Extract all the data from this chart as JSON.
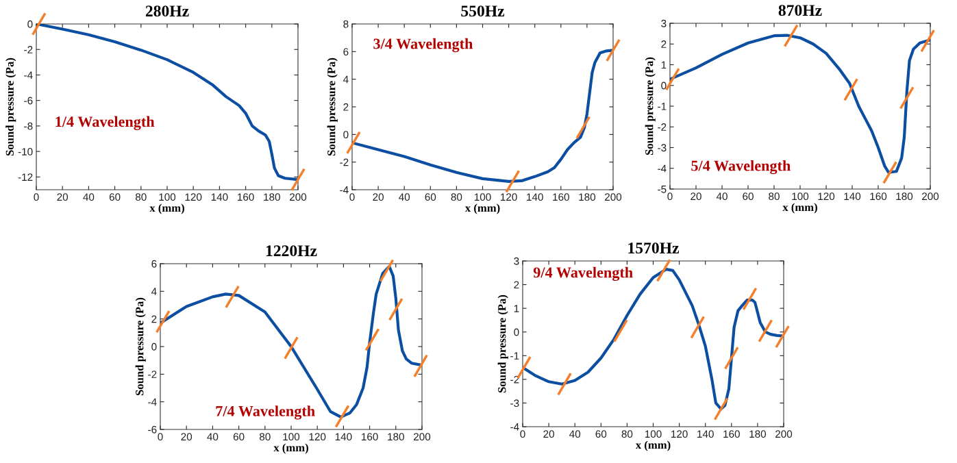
{
  "chart_data": [
    {
      "type": "line",
      "title": "280Hz",
      "xlabel": "x (mm)",
      "ylabel": "Sound pressure (Pa)",
      "annotations": [
        "1/4 Wavelength"
      ],
      "xlim": [
        0,
        200
      ],
      "xticks": [
        0,
        20,
        40,
        60,
        80,
        100,
        120,
        140,
        160,
        180,
        200
      ],
      "ylim": [
        -13,
        0
      ],
      "yticks": [
        -12,
        -10,
        -8,
        -6,
        -4,
        -2,
        0
      ],
      "grid": false,
      "series": [
        {
          "type": "line",
          "color": "#0b4ea2",
          "x": [
            0,
            20,
            40,
            60,
            80,
            100,
            120,
            135,
            145,
            155,
            160,
            165,
            170,
            175,
            178,
            180,
            182,
            185,
            190,
            200
          ],
          "values": [
            0,
            -0.4,
            -0.85,
            -1.4,
            -2.05,
            -2.8,
            -3.8,
            -4.8,
            -5.7,
            -6.4,
            -7,
            -8,
            -8.4,
            -8.7,
            -9.2,
            -10.2,
            -11.3,
            -11.9,
            -12.1,
            -12.2
          ]
        },
        {
          "type": "scatter",
          "color": "#f47f2a",
          "x": [
            2,
            200
          ],
          "values": [
            0,
            -12.2
          ]
        }
      ]
    },
    {
      "type": "line",
      "title": "550Hz",
      "xlabel": "x (mm)",
      "ylabel": "Sound pressure (Pa)",
      "annotations": [
        "3/4 Wavelength"
      ],
      "xlim": [
        0,
        200
      ],
      "xticks": [
        0,
        20,
        40,
        60,
        80,
        100,
        120,
        140,
        160,
        180,
        200
      ],
      "ylim": [
        -4,
        8
      ],
      "yticks": [
        -4,
        -2,
        0,
        2,
        4,
        6,
        8
      ],
      "grid": false,
      "series": [
        {
          "type": "line",
          "color": "#0b4ea2",
          "x": [
            0,
            20,
            40,
            60,
            80,
            100,
            120,
            130,
            140,
            150,
            155,
            160,
            165,
            170,
            175,
            178,
            180,
            182,
            184,
            186,
            190,
            195,
            200
          ],
          "values": [
            -0.6,
            -1.1,
            -1.6,
            -2.2,
            -2.75,
            -3.2,
            -3.4,
            -3.35,
            -3.05,
            -2.7,
            -2.4,
            -1.8,
            -1.1,
            -0.6,
            -0.2,
            0.5,
            1.5,
            3,
            4.5,
            5.2,
            5.9,
            6.05,
            6.1
          ]
        },
        {
          "type": "scatter",
          "color": "#f47f2a",
          "x": [
            1,
            123,
            177,
            200
          ],
          "values": [
            -0.6,
            -3.4,
            0.5,
            6.1
          ]
        }
      ]
    },
    {
      "type": "line",
      "title": "870Hz",
      "xlabel": "x (mm)",
      "ylabel": "Sound pressure (Pa)",
      "annotations": [
        "5/4 Wavelength"
      ],
      "xlim": [
        0,
        200
      ],
      "xticks": [
        0,
        20,
        40,
        60,
        80,
        100,
        120,
        140,
        160,
        180,
        200
      ],
      "ylim": [
        -5,
        3
      ],
      "yticks": [
        -5,
        -4,
        -3,
        -2,
        -1,
        0,
        1,
        2,
        3
      ],
      "grid": false,
      "series": [
        {
          "type": "line",
          "color": "#0b4ea2",
          "x": [
            0,
            20,
            40,
            60,
            80,
            90,
            100,
            110,
            120,
            130,
            138,
            145,
            150,
            155,
            160,
            165,
            168,
            174,
            178,
            180,
            182,
            184,
            187,
            192,
            200
          ],
          "values": [
            0.3,
            0.85,
            1.5,
            2.05,
            2.4,
            2.42,
            2.3,
            2.0,
            1.55,
            0.8,
            0.1,
            -1,
            -1.6,
            -2.2,
            -3,
            -3.9,
            -4.2,
            -4.15,
            -3.5,
            -2.5,
            -0.3,
            1.2,
            1.75,
            2.05,
            2.2
          ]
        },
        {
          "type": "scatter",
          "color": "#f47f2a",
          "x": [
            2,
            93,
            139,
            169,
            182,
            198
          ],
          "values": [
            0.3,
            2.4,
            -0.2,
            -4.2,
            -0.6,
            2.15
          ]
        }
      ]
    },
    {
      "type": "line",
      "title": "1220Hz",
      "xlabel": "x (mm)",
      "ylabel": "Sound pressure (Pa)",
      "annotations": [
        "7/4 Wavelength"
      ],
      "xlim": [
        0,
        200
      ],
      "xticks": [
        0,
        20,
        40,
        60,
        80,
        100,
        120,
        140,
        160,
        180,
        200
      ],
      "ylim": [
        -6,
        6
      ],
      "yticks": [
        -6,
        -4,
        -2,
        0,
        2,
        4,
        6
      ],
      "grid": false,
      "series": [
        {
          "type": "line",
          "color": "#0b4ea2",
          "x": [
            0,
            20,
            40,
            50,
            60,
            80,
            100,
            120,
            130,
            138,
            145,
            150,
            155,
            158,
            160,
            163,
            165,
            170,
            175,
            178,
            180,
            182,
            185,
            188,
            192,
            200
          ],
          "values": [
            1.7,
            2.9,
            3.6,
            3.8,
            3.7,
            2.5,
            0,
            -3.1,
            -4.7,
            -5.1,
            -4.8,
            -4.2,
            -3,
            -1.5,
            0.3,
            2.5,
            3.8,
            5.3,
            5.8,
            5.1,
            3.5,
            1.2,
            -0.3,
            -0.9,
            -1.2,
            -1.35
          ]
        },
        {
          "type": "scatter",
          "color": "#f47f2a",
          "x": [
            2,
            55,
            100,
            139,
            162,
            173,
            180,
            199
          ],
          "values": [
            1.8,
            3.6,
            -0.1,
            -5.05,
            0.5,
            5.5,
            2.7,
            -1.4
          ]
        }
      ]
    },
    {
      "type": "line",
      "title": "1570Hz",
      "xlabel": "x (mm)",
      "ylabel": "Sound pressure (Pa)",
      "annotations": [
        "9/4 Wavelength"
      ],
      "xlim": [
        0,
        200
      ],
      "xticks": [
        0,
        20,
        40,
        60,
        80,
        100,
        120,
        140,
        160,
        180,
        200
      ],
      "ylim": [
        -4,
        3
      ],
      "yticks": [
        -4,
        -3,
        -2,
        -1,
        0,
        1,
        2,
        3
      ],
      "grid": false,
      "series": [
        {
          "type": "line",
          "color": "#0b4ea2",
          "x": [
            0,
            10,
            20,
            30,
            40,
            50,
            60,
            70,
            80,
            90,
            100,
            110,
            115,
            120,
            130,
            135,
            140,
            145,
            148,
            152,
            155,
            158,
            160,
            162,
            165,
            168,
            172,
            176,
            178,
            182,
            186,
            190,
            195,
            200
          ],
          "values": [
            -1.5,
            -1.85,
            -2.1,
            -2.2,
            -2.05,
            -1.7,
            -1.1,
            -0.3,
            0.7,
            1.6,
            2.3,
            2.65,
            2.6,
            2.2,
            1.1,
            0.3,
            -0.6,
            -2,
            -3,
            -3.25,
            -3.1,
            -2.4,
            -1.1,
            0.2,
            0.9,
            1.1,
            1.35,
            1.35,
            1.25,
            0.4,
            0,
            -0.1,
            -0.15,
            -0.17
          ]
        },
        {
          "type": "scatter",
          "color": "#f47f2a",
          "x": [
            1,
            32,
            75,
            108,
            134,
            152,
            160,
            174,
            186,
            199
          ],
          "values": [
            -1.5,
            -2.2,
            0.05,
            2.6,
            0.2,
            -3.25,
            -1.1,
            1.4,
            0.05,
            -0.2
          ]
        }
      ]
    }
  ]
}
